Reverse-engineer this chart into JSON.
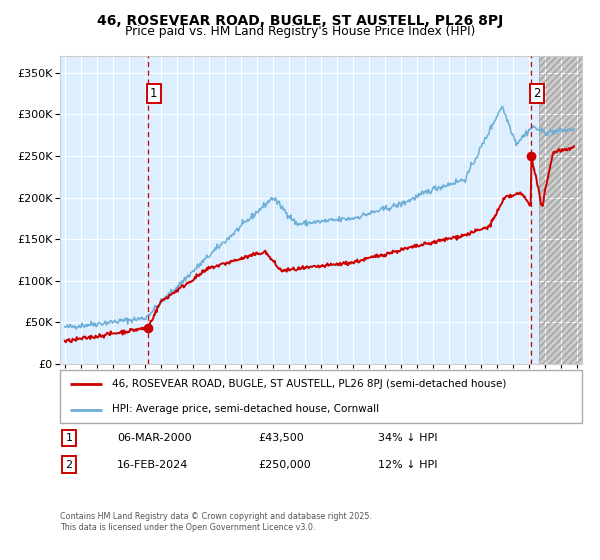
{
  "title1": "46, ROSEVEAR ROAD, BUGLE, ST AUSTELL, PL26 8PJ",
  "title2": "Price paid vs. HM Land Registry's House Price Index (HPI)",
  "legend_line1": "46, ROSEVEAR ROAD, BUGLE, ST AUSTELL, PL26 8PJ (semi-detached house)",
  "legend_line2": "HPI: Average price, semi-detached house, Cornwall",
  "footnote": "Contains HM Land Registry data © Crown copyright and database right 2025.\nThis data is licensed under the Open Government Licence v3.0.",
  "purchase1_date": "06-MAR-2000",
  "purchase1_price": 43500,
  "purchase1_label": "34% ↓ HPI",
  "purchase2_date": "16-FEB-2024",
  "purchase2_price": 250000,
  "purchase2_label": "12% ↓ HPI",
  "sale_color": "#cc0000",
  "hpi_color": "#6baed6",
  "bg_color": "#ddeeff",
  "ylim": [
    0,
    370000
  ],
  "xlim_start": 1994.7,
  "xlim_end": 2027.3,
  "purchase1_x": 2000.18,
  "purchase2_x": 2024.12,
  "hatch_start": 2024.6
}
